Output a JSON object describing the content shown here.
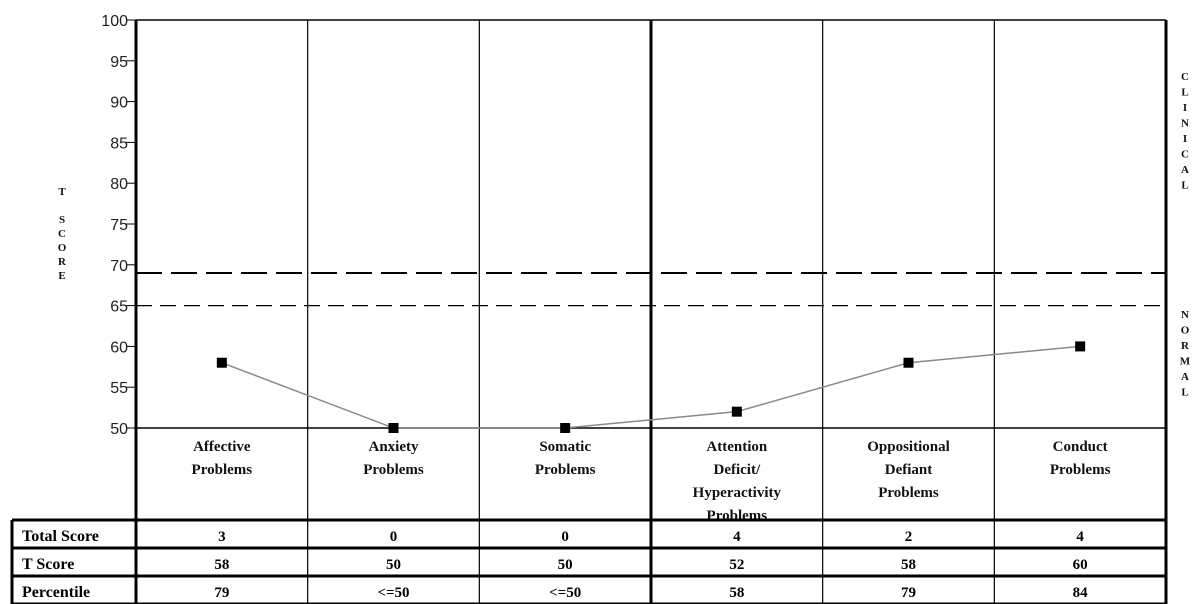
{
  "chart_data": {
    "type": "line",
    "categories": [
      [
        "Affective",
        "Problems"
      ],
      [
        "Anxiety",
        "Problems"
      ],
      [
        "Somatic",
        "Problems"
      ],
      [
        "Attention",
        "Deficit/",
        "Hyperactivity",
        "Problems"
      ],
      [
        "Oppositional",
        "Defiant",
        "Problems"
      ],
      [
        "Conduct",
        "Problems"
      ]
    ],
    "series": [
      {
        "values": [
          58,
          50,
          50,
          52,
          58,
          60
        ]
      }
    ],
    "ylabel": "T SCORE",
    "ylim": [
      50,
      100
    ],
    "yticks": [
      100,
      95,
      90,
      85,
      80,
      75,
      70,
      65,
      60,
      55,
      50
    ],
    "reference_lines": [
      {
        "value": 69,
        "style": "long-dash"
      },
      {
        "value": 65,
        "style": "dash"
      }
    ],
    "zones": [
      "CLINICAL",
      "NORMAL"
    ],
    "grid": false,
    "table": {
      "rows": [
        {
          "label": "Total Score",
          "values": [
            "3",
            "0",
            "0",
            "4",
            "2",
            "4"
          ]
        },
        {
          "label": "T Score",
          "values": [
            "58",
            "50",
            "50",
            "52",
            "58",
            "60"
          ]
        },
        {
          "label": "Percentile",
          "values": [
            "79",
            "<=50",
            "<=50",
            "58",
            "79",
            "84"
          ]
        }
      ]
    }
  },
  "colors": {
    "line": "#8a8a8a",
    "marker": "#000000",
    "frame": "#000000"
  }
}
